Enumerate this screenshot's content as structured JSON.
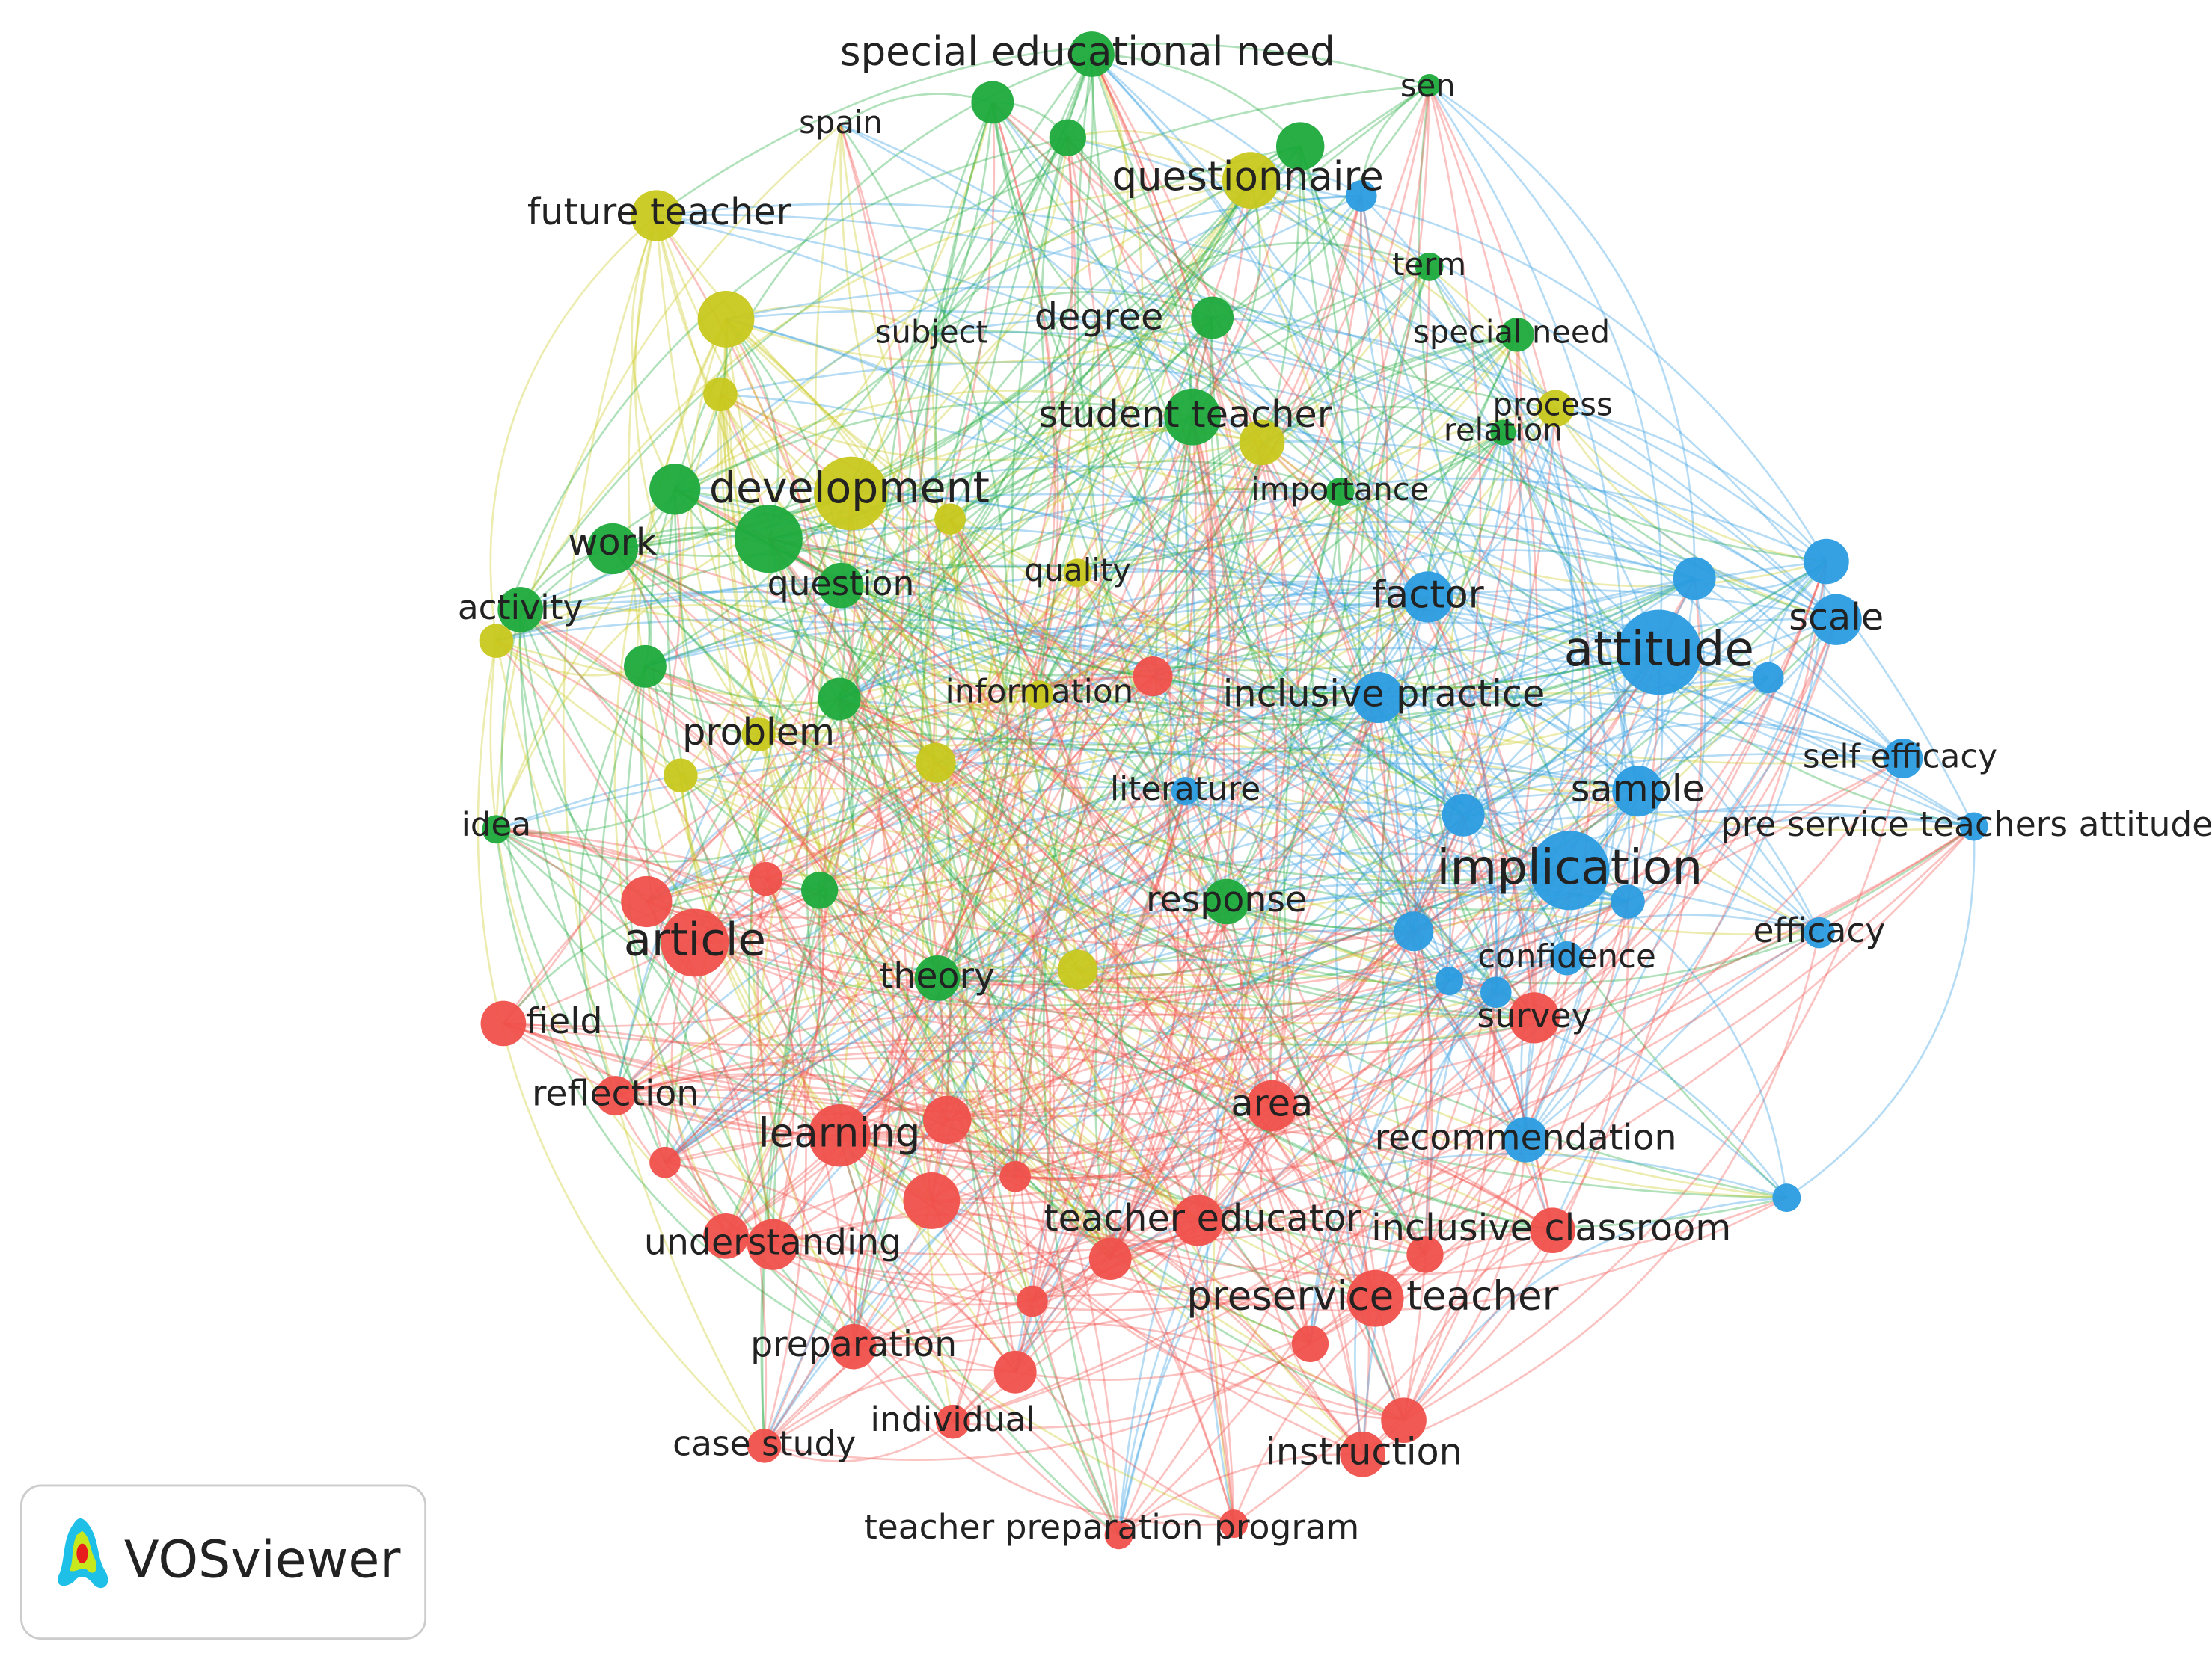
{
  "nodes": [
    {
      "label": "special educational need",
      "color": "#1eaa3c"
    },
    {
      "label": "sen",
      "color": "#1eaa3c"
    },
    {
      "label": "spain",
      "color": "#c8c81e"
    },
    {
      "label": "questionnaire",
      "color": "#c8c81e"
    },
    {
      "label": "future teacher",
      "color": "#c8c81e"
    },
    {
      "label": "term",
      "color": "#1eaa3c"
    },
    {
      "label": "subject",
      "color": "#c8c81e"
    },
    {
      "label": "degree",
      "color": "#c8c81e"
    },
    {
      "label": "special need",
      "color": "#1eaa3c"
    },
    {
      "label": "process",
      "color": "#c8c81e"
    },
    {
      "label": "student teacher",
      "color": "#1eaa3c"
    },
    {
      "label": "relation",
      "color": "#1eaa3c"
    },
    {
      "label": "development",
      "color": "#c8c81e"
    },
    {
      "label": "importance",
      "color": "#1eaa3c"
    },
    {
      "label": "work",
      "color": "#1eaa3c"
    },
    {
      "label": "question",
      "color": "#1eaa3c"
    },
    {
      "label": "quality",
      "color": "#c8c81e"
    },
    {
      "label": "activity",
      "color": "#1eaa3c"
    },
    {
      "label": "factor",
      "color": "#2b9ce0"
    },
    {
      "label": "attitude",
      "color": "#2b9ce0"
    },
    {
      "label": "scale",
      "color": "#2b9ce0"
    },
    {
      "label": "information",
      "color": "#c8c81e"
    },
    {
      "label": "inclusive practice",
      "color": "#2b9ce0"
    },
    {
      "label": "problem",
      "color": "#c8c81e"
    },
    {
      "label": "self efficacy",
      "color": "#2b9ce0"
    },
    {
      "label": "literature",
      "color": "#2b9ce0"
    },
    {
      "label": "sample",
      "color": "#2b9ce0"
    },
    {
      "label": "idea",
      "color": "#1eaa3c"
    },
    {
      "label": "pre service teachers attitude",
      "color": "#2b9ce0"
    },
    {
      "label": "implication",
      "color": "#2b9ce0"
    },
    {
      "label": "response",
      "color": "#1eaa3c"
    },
    {
      "label": "efficacy",
      "color": "#2b9ce0"
    },
    {
      "label": "article",
      "color": "#f0504b"
    },
    {
      "label": "confidence",
      "color": "#2b9ce0"
    },
    {
      "label": "theory",
      "color": "#1eaa3c"
    },
    {
      "label": "field",
      "color": "#f0504b"
    },
    {
      "label": "survey",
      "color": "#f0504b"
    },
    {
      "label": "reflection",
      "color": "#f0504b"
    },
    {
      "label": "area",
      "color": "#f0504b"
    },
    {
      "label": "learning",
      "color": "#f0504b"
    },
    {
      "label": "recommendation",
      "color": "#2b9ce0"
    },
    {
      "label": "teacher educator",
      "color": "#f0504b"
    },
    {
      "label": "inclusive classroom",
      "color": "#f0504b"
    },
    {
      "label": "understanding",
      "color": "#f0504b"
    },
    {
      "label": "preservice teacher",
      "color": "#f0504b"
    },
    {
      "label": "preparation",
      "color": "#f0504b"
    },
    {
      "label": "individual",
      "color": "#f0504b"
    },
    {
      "label": "case study",
      "color": "#f0504b"
    },
    {
      "label": "instruction",
      "color": "#f0504b"
    },
    {
      "label": "teacher preparation program",
      "color": "#f0504b"
    }
  ],
  "logo": {
    "text": "VOSviewer"
  }
}
